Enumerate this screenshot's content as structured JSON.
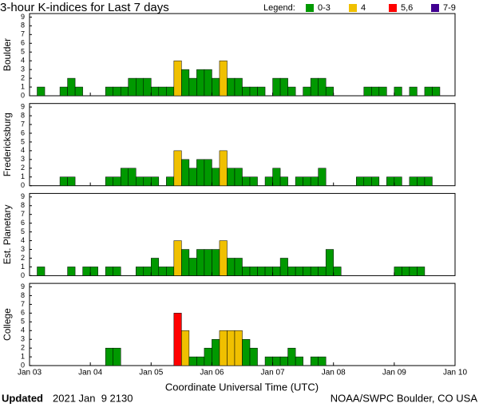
{
  "header": {
    "title": "3-hour K-indices for Last 7 days",
    "legend_label": "Legend:",
    "legend": [
      {
        "label": "0-3",
        "color": "#009900"
      },
      {
        "label": "4",
        "color": "#f0c000"
      },
      {
        "label": "5,6",
        "color": "#ff0000"
      },
      {
        "label": "7-9",
        "color": "#400090"
      }
    ]
  },
  "x_label": "Coordinate Universal Time (UTC)",
  "footer": {
    "updated_label": "Updated",
    "updated_time": "2021 Jan  9 2130",
    "source": "NOAA/SWPC Boulder, CO USA"
  },
  "chart_data": [
    {
      "type": "bar",
      "title": "Boulder",
      "ylim": [
        0,
        9.4
      ],
      "yticks": [
        0,
        1,
        2,
        3,
        4,
        5,
        6,
        7,
        8,
        9
      ],
      "xlim": [
        0,
        56
      ],
      "xticks": [
        0,
        8,
        16,
        24,
        32,
        40,
        48,
        56
      ],
      "values": [
        0,
        1,
        0,
        0,
        1,
        2,
        1,
        0,
        0,
        0,
        1,
        1,
        1,
        2,
        2,
        2,
        1,
        1,
        1,
        4,
        3,
        2,
        3,
        3,
        2,
        4,
        2,
        2,
        1,
        1,
        1,
        0,
        2,
        2,
        1,
        0,
        1,
        2,
        2,
        1,
        0,
        0,
        0,
        0,
        1,
        1,
        1,
        0,
        1,
        0,
        1,
        0,
        1,
        1,
        0,
        0
      ]
    },
    {
      "type": "bar",
      "title": "Fredericksburg",
      "ylim": [
        0,
        9.4
      ],
      "yticks": [
        0,
        1,
        2,
        3,
        4,
        5,
        6,
        7,
        8,
        9
      ],
      "xlim": [
        0,
        56
      ],
      "xticks": [
        0,
        8,
        16,
        24,
        32,
        40,
        48,
        56
      ],
      "values": [
        0,
        0,
        0,
        0,
        1,
        1,
        0,
        0,
        0,
        0,
        1,
        1,
        2,
        2,
        1,
        1,
        1,
        0,
        1,
        4,
        3,
        2,
        3,
        3,
        2,
        4,
        2,
        2,
        1,
        1,
        0,
        1,
        2,
        1,
        0,
        1,
        1,
        1,
        2,
        0,
        0,
        0,
        0,
        1,
        1,
        1,
        0,
        1,
        1,
        0,
        1,
        1,
        1,
        0,
        0,
        0
      ]
    },
    {
      "type": "bar",
      "title": "Est. Planetary",
      "ylim": [
        0,
        9.4
      ],
      "yticks": [
        0,
        1,
        2,
        3,
        4,
        5,
        6,
        7,
        8,
        9
      ],
      "xlim": [
        0,
        56
      ],
      "xticks": [
        0,
        8,
        16,
        24,
        32,
        40,
        48,
        56
      ],
      "values": [
        0,
        1,
        0,
        0,
        0,
        1,
        0,
        1,
        1,
        0,
        1,
        1,
        0,
        0,
        1,
        1,
        2,
        1,
        1,
        4,
        3,
        2,
        3,
        3,
        3,
        4,
        2,
        2,
        1,
        1,
        1,
        1,
        1,
        2,
        1,
        1,
        1,
        1,
        1,
        3,
        1,
        0,
        0,
        0,
        0,
        0,
        0,
        0,
        1,
        1,
        1,
        1,
        0,
        0,
        0,
        0
      ]
    },
    {
      "type": "bar",
      "title": "College",
      "ylim": [
        0,
        9.4
      ],
      "yticks": [
        0,
        1,
        2,
        3,
        4,
        5,
        6,
        7,
        8,
        9
      ],
      "xlim": [
        0,
        56
      ],
      "xticks": [
        {
          "value": 0,
          "label": "Jan 03"
        },
        {
          "value": 8,
          "label": "Jan 04"
        },
        {
          "value": 16,
          "label": "Jan 05"
        },
        {
          "value": 24,
          "label": "Jan 06"
        },
        {
          "value": 32,
          "label": "Jan 07"
        },
        {
          "value": 40,
          "label": "Jan 08"
        },
        {
          "value": 48,
          "label": "Jan 09"
        },
        {
          "value": 56,
          "label": "Jan 10"
        }
      ],
      "values": [
        0,
        0,
        0,
        0,
        0,
        0,
        0,
        0,
        0,
        0,
        2,
        2,
        0,
        0,
        0,
        0,
        0,
        0,
        0,
        6,
        4,
        1,
        1,
        2,
        3,
        4,
        4,
        4,
        3,
        2,
        0,
        1,
        1,
        1,
        2,
        1,
        0,
        1,
        1,
        0,
        0,
        0,
        0,
        0,
        0,
        0,
        0,
        0,
        0,
        0,
        0,
        0,
        0,
        0,
        0,
        0
      ]
    }
  ]
}
